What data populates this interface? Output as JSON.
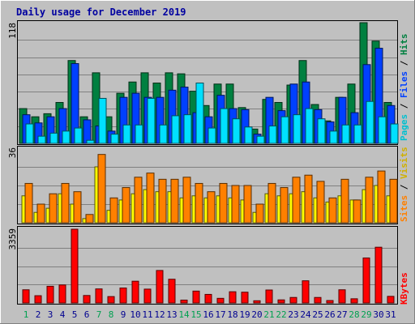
{
  "chart_data": [
    {
      "type": "bar",
      "title": "Daily usage for December 2019",
      "categories": [
        "1",
        "2",
        "3",
        "4",
        "5",
        "6",
        "7",
        "8",
        "9",
        "10",
        "11",
        "12",
        "13",
        "14",
        "15",
        "16",
        "17",
        "18",
        "19",
        "20",
        "21",
        "22",
        "23",
        "24",
        "25",
        "26",
        "27",
        "28",
        "29",
        "30",
        "31"
      ],
      "weekend_days": [
        "1",
        "7",
        "8",
        "14",
        "15",
        "21",
        "22",
        "28",
        "29"
      ],
      "ymax_label": "118",
      "ylim": [
        0,
        118
      ],
      "series": [
        {
          "name": "Hits",
          "color": "#008040",
          "values": [
            34,
            26,
            29,
            40,
            81,
            26,
            69,
            26,
            49,
            60,
            69,
            59,
            69,
            68,
            51,
            37,
            58,
            58,
            35,
            14,
            43,
            40,
            57,
            81,
            38,
            22,
            45,
            58,
            118,
            100,
            40
          ]
        },
        {
          "name": "Files",
          "color": "#0040ff",
          "values": [
            28,
            20,
            26,
            34,
            78,
            23,
            17,
            12,
            45,
            49,
            45,
            45,
            52,
            55,
            30,
            26,
            47,
            34,
            33,
            9,
            45,
            32,
            58,
            60,
            33,
            21,
            45,
            30,
            77,
            93,
            37
          ]
        },
        {
          "name": "Pages",
          "color": "#00e0ff",
          "values": [
            19,
            7,
            10,
            12,
            15,
            3,
            44,
            9,
            18,
            18,
            44,
            18,
            27,
            28,
            59,
            15,
            34,
            24,
            16,
            7,
            17,
            26,
            28,
            34,
            24,
            12,
            18,
            18,
            41,
            26,
            19
          ]
        }
      ]
    },
    {
      "type": "bar",
      "ymax_label": "36",
      "ylim": [
        0,
        36
      ],
      "series": [
        {
          "name": "Visits",
          "color": "#ffff00",
          "values": [
            13,
            5,
            7,
            14,
            9,
            2,
            27,
            6,
            11,
            14,
            16,
            15,
            15,
            12,
            13,
            12,
            13,
            12,
            11,
            5,
            14,
            13,
            14,
            15,
            12,
            10,
            13,
            11,
            16,
            18,
            13
          ]
        },
        {
          "name": "Sites",
          "color": "#ff8000",
          "values": [
            19,
            9,
            14,
            19,
            15,
            4,
            33,
            12,
            17,
            22,
            24,
            21,
            21,
            22,
            19,
            15,
            19,
            18,
            18,
            9,
            19,
            17,
            22,
            23,
            20,
            12,
            21,
            11,
            22,
            25,
            21
          ]
        }
      ]
    },
    {
      "type": "bar",
      "ymax_label": "3359",
      "ylim": [
        0,
        3359
      ],
      "series": [
        {
          "name": "KBytes",
          "color": "#ff0000",
          "values": [
            600,
            330,
            760,
            820,
            3359,
            340,
            640,
            290,
            680,
            990,
            630,
            1480,
            1080,
            130,
            540,
            390,
            210,
            510,
            490,
            100,
            590,
            140,
            250,
            1010,
            250,
            110,
            600,
            190,
            2050,
            2540,
            300
          ]
        }
      ]
    }
  ],
  "side_labels": {
    "pages": "Pages",
    "files": "Files",
    "hits": "Hits",
    "sites": "Sites",
    "visits": "Visits",
    "kbytes": "KBytes",
    "slash": " / "
  },
  "colors": {
    "panel_bg": "#c0c0c0",
    "plot_bg": "#c0c0c0",
    "grid": "#808080",
    "frame_light": "#ffffff",
    "frame_dark": "#808080",
    "weekday_label": "#000090",
    "weekend_label": "#00a050"
  }
}
